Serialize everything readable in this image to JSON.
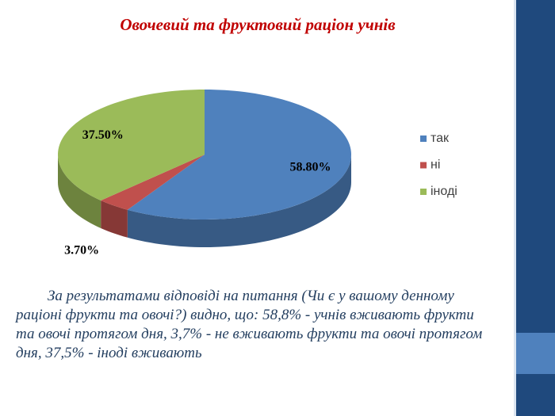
{
  "chart_data": {
    "type": "pie",
    "title": "Овочевий та фруктовий раціон учнів",
    "categories": [
      "так",
      "ні",
      "іноді"
    ],
    "values": [
      58.8,
      3.7,
      37.5
    ],
    "value_labels": [
      "58.80%",
      "3.70%",
      "37.50%"
    ],
    "colors": [
      "#4f81bd",
      "#c0504d",
      "#9bbb59"
    ],
    "legend": "right"
  },
  "body_text": "За результатами відповіді на питання (Чи є у вашому денному раціоні фрукти та овочі?) видно, що: 58,8% - учнів вживають фрукти та овочі протягом дня, 3,7% - не вживають фрукти та овочі протягом дня, 37,5% - іноді вживають"
}
